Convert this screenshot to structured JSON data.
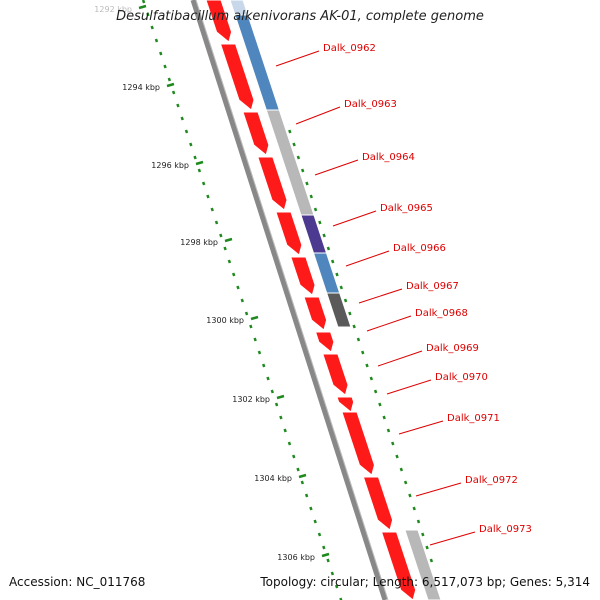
{
  "title": "Desulfatibacillum alkenivorans AK-01, complete genome",
  "footer": {
    "accession": "Accession: NC_011768",
    "summary": "Topology: circular; Length: 6,517,073 bp; Genes: 5,314"
  },
  "ticks": [
    "1292 kbp",
    "1294 kbp",
    "1296 kbp",
    "1298 kbp",
    "1300 kbp",
    "1302 kbp",
    "1304 kbp",
    "1306 kbp"
  ],
  "genes": [
    {
      "label": "Dalk_0962"
    },
    {
      "label": "Dalk_0963"
    },
    {
      "label": "Dalk_0964"
    },
    {
      "label": "Dalk_0965"
    },
    {
      "label": "Dalk_0966"
    },
    {
      "label": "Dalk_0967"
    },
    {
      "label": "Dalk_0968"
    },
    {
      "label": "Dalk_0969"
    },
    {
      "label": "Dalk_0970"
    },
    {
      "label": "Dalk_0971"
    },
    {
      "label": "Dalk_0972"
    },
    {
      "label": "Dalk_0973"
    }
  ],
  "colors": {
    "backbone": "#7a7a7a",
    "cds": "#ff1a1a",
    "gene_label": "#dd0000",
    "tick": "#1e8a1e",
    "feature_blue": "#4f86bd",
    "feature_grey": "#b8b8b8",
    "feature_dark": "#5a5a5a",
    "feature_purple": "#4b3a8f"
  }
}
